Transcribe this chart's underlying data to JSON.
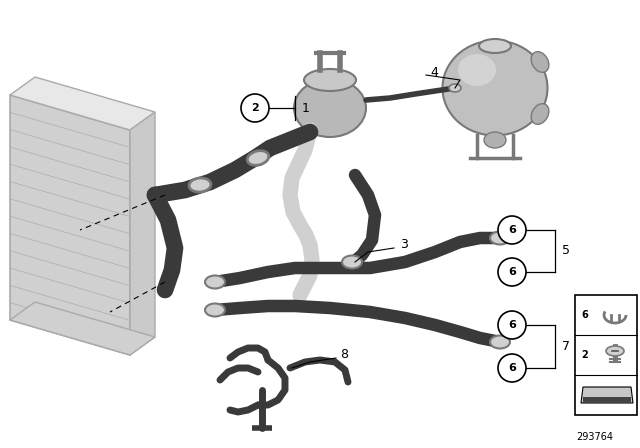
{
  "bg_color": "#ffffff",
  "part_number": "293764",
  "dark_gray": "#3a3a3a",
  "mid_gray": "#787878",
  "light_gray": "#aaaaaa",
  "very_light_gray": "#d0d0d0",
  "radiator_face": "#dcdcdc",
  "radiator_side": "#c8c8c8",
  "white_hose": "#c8c8c8",
  "tank_color": "#b8b8b8",
  "lw_main": 9,
  "lw_small": 5
}
